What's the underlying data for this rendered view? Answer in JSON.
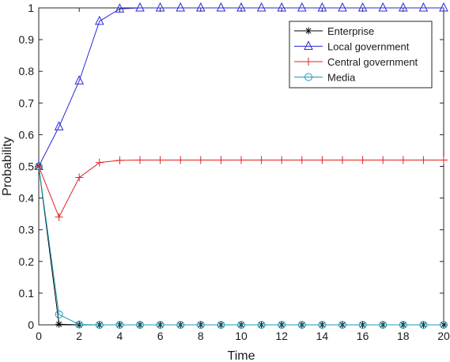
{
  "chart_data": {
    "type": "line",
    "title": "",
    "xlabel": "Time",
    "ylabel": "Probability",
    "xlim": [
      0,
      20
    ],
    "ylim": [
      0,
      1
    ],
    "xticks": [
      0,
      2,
      4,
      6,
      8,
      10,
      12,
      14,
      16,
      18,
      20
    ],
    "yticks": [
      0,
      0.1,
      0.2,
      0.3,
      0.4,
      0.5,
      0.6,
      0.7,
      0.8,
      0.9,
      1
    ],
    "grid": false,
    "legend_position": "top-right",
    "x": [
      0,
      1,
      2,
      3,
      4,
      5,
      6,
      7,
      8,
      9,
      10,
      11,
      12,
      13,
      14,
      15,
      16,
      17,
      18,
      19,
      20
    ],
    "series": [
      {
        "name": "Enterprise",
        "color": "#000000",
        "marker": "asterisk",
        "values": [
          0.5,
          0.002,
          0,
          0,
          0,
          0,
          0,
          0,
          0,
          0,
          0,
          0,
          0,
          0,
          0,
          0,
          0,
          0,
          0,
          0,
          0
        ]
      },
      {
        "name": "Local government",
        "color": "#2b2bd6",
        "marker": "triangle",
        "values": [
          0.5,
          0.625,
          0.77,
          0.958,
          0.997,
          1,
          1,
          1,
          1,
          1,
          1,
          1,
          1,
          1,
          1,
          1,
          1,
          1,
          1,
          1,
          1
        ]
      },
      {
        "name": "Central government",
        "color": "#e02020",
        "marker": "plus",
        "values": [
          0.5,
          0.34,
          0.465,
          0.512,
          0.519,
          0.52,
          0.52,
          0.52,
          0.52,
          0.52,
          0.52,
          0.52,
          0.52,
          0.52,
          0.52,
          0.52,
          0.52,
          0.52,
          0.52,
          0.52,
          0.52
        ]
      },
      {
        "name": "Media",
        "color": "#1a9bb5",
        "marker": "circle",
        "values": [
          0.5,
          0.033,
          0.001,
          0,
          0,
          0,
          0,
          0,
          0,
          0,
          0,
          0,
          0,
          0,
          0,
          0,
          0,
          0,
          0,
          0,
          0
        ]
      }
    ]
  }
}
